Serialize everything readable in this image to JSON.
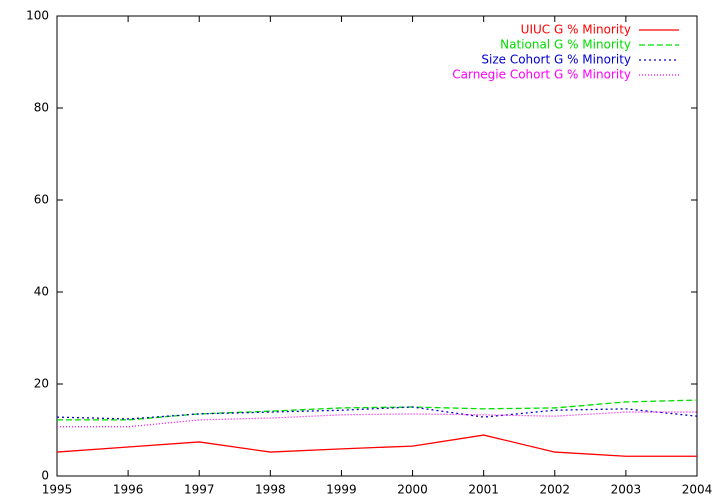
{
  "chart_data": {
    "type": "line",
    "x": [
      1995,
      1996,
      1997,
      1998,
      1999,
      2000,
      2001,
      2002,
      2003,
      2004
    ],
    "series": [
      {
        "name": "UIUC G % Minority",
        "color": "#ff0000",
        "dash": "solid",
        "values": [
          5.2,
          6.3,
          7.4,
          5.2,
          5.9,
          6.5,
          8.9,
          5.2,
          4.3,
          4.3
        ]
      },
      {
        "name": "National G % Minority",
        "color": "#00dd00",
        "dash": "dashed",
        "values": [
          12.2,
          12.2,
          13.5,
          14.1,
          14.8,
          15.0,
          14.6,
          14.8,
          16.1,
          16.5
        ]
      },
      {
        "name": "Size Cohort G % Minority",
        "color": "#0000cc",
        "dash": "dotted",
        "values": [
          12.8,
          12.4,
          13.5,
          13.9,
          14.3,
          15.0,
          12.8,
          14.3,
          14.6,
          13.0
        ]
      },
      {
        "name": "Carnegie Cohort G % Minority",
        "color": "#ff00ff",
        "dash": "fine-dotted",
        "values": [
          10.7,
          10.7,
          12.2,
          12.6,
          13.3,
          13.5,
          13.3,
          13.0,
          13.9,
          13.9
        ]
      }
    ],
    "xlim": [
      1995,
      2004
    ],
    "xticks": [
      1995,
      1996,
      1997,
      1998,
      1999,
      2000,
      2001,
      2002,
      2003,
      2004
    ],
    "ylim": [
      0,
      100
    ],
    "yticks": [
      0,
      20,
      40,
      60,
      80,
      100
    ],
    "grid": false,
    "legend": "top-right"
  }
}
